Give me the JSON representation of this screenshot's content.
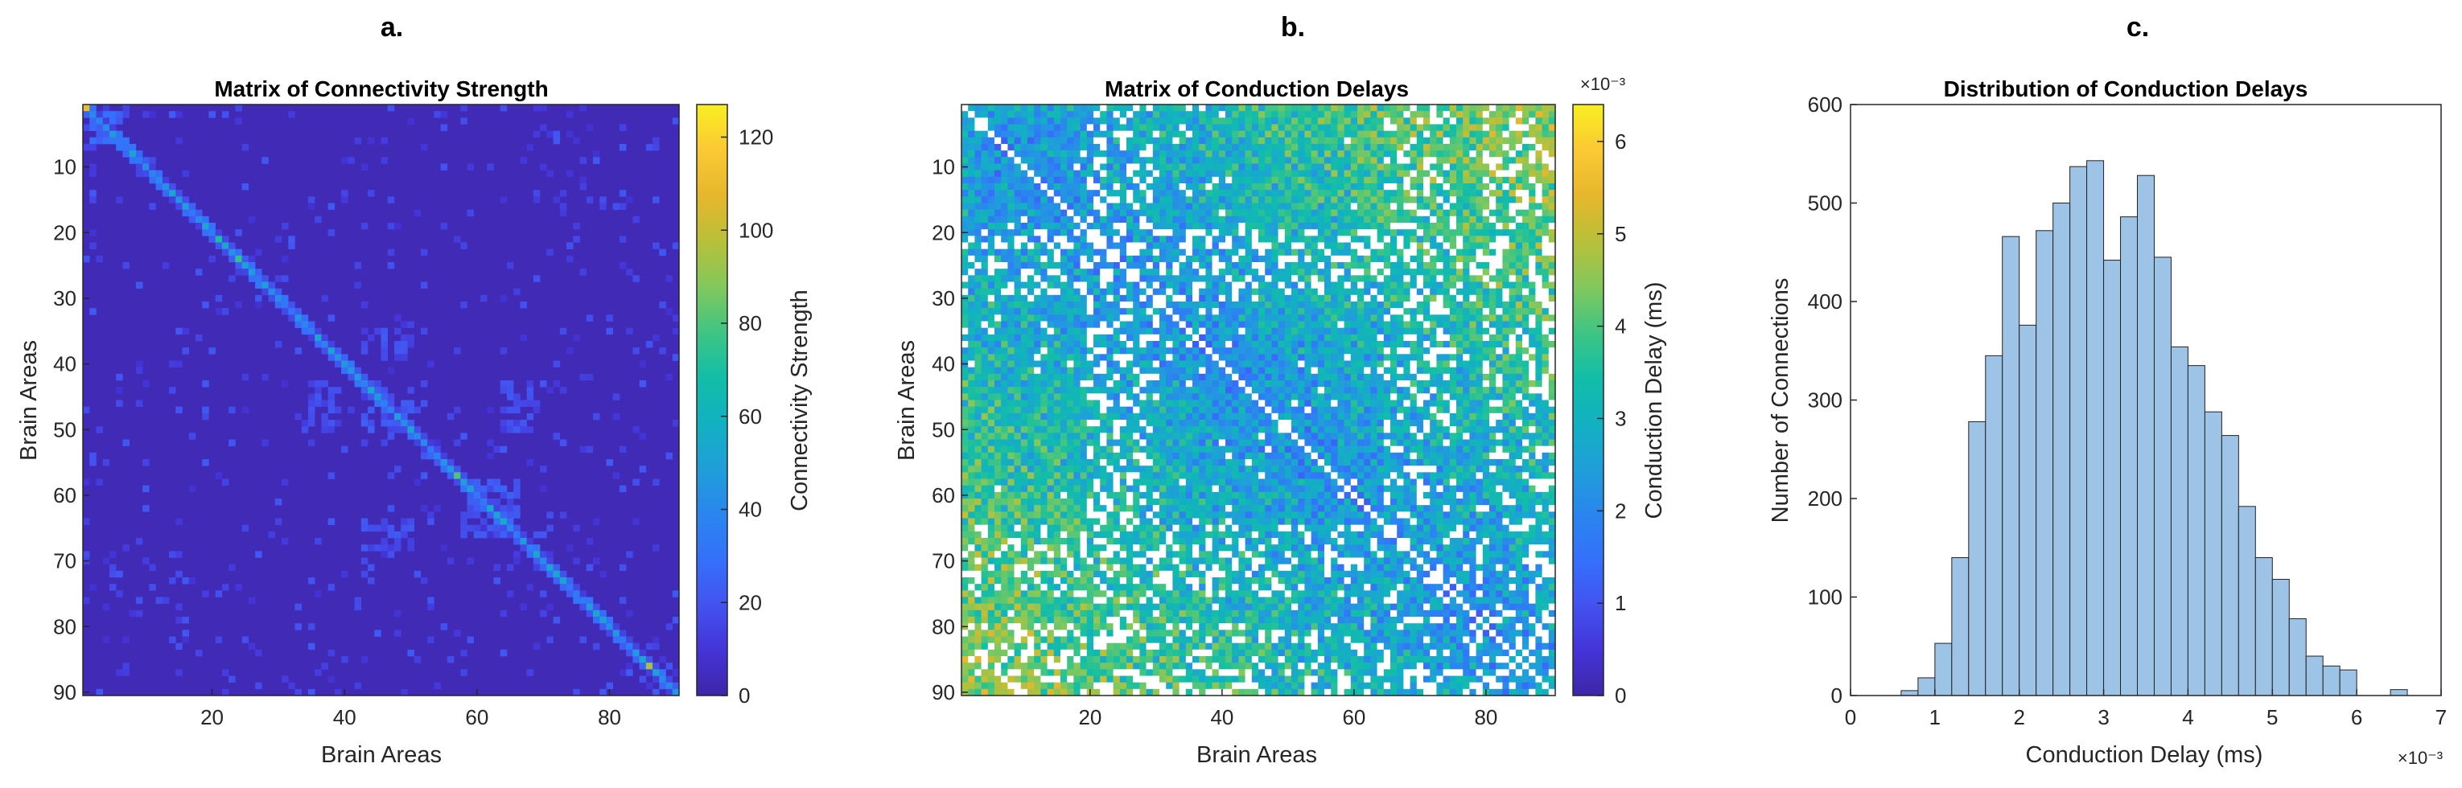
{
  "colors": {
    "colormap_parula": [
      "#3e26a8",
      "#4434d7",
      "#4353ef",
      "#3471fb",
      "#2a86ee",
      "#1f9fd9",
      "#12b1c1",
      "#12bea7",
      "#3fc583",
      "#82c85c",
      "#b8c039",
      "#e6b72d",
      "#fbc934",
      "#f8ef21"
    ],
    "hist_fill": "#9dc3e6",
    "hist_edge": "#222222",
    "axis": "#262626",
    "nan_cell": "#ffffff"
  },
  "chart_data": [
    {
      "type": "heatmap",
      "panel_label": "a.",
      "title": "Matrix of Connectivity Strength",
      "xlabel": "Brain Areas",
      "ylabel": "Brain Areas",
      "size": 90,
      "x_ticks": [
        20,
        40,
        60,
        80
      ],
      "y_ticks": [
        10,
        20,
        30,
        40,
        50,
        60,
        70,
        80,
        90
      ],
      "colorbar": {
        "label": "Connectivity Strength",
        "min": 0,
        "max": 127,
        "ticks": [
          0,
          20,
          40,
          60,
          80,
          100,
          120
        ]
      },
      "background_value": 3,
      "diagonal_peaks": [
        [
          1,
          110
        ],
        [
          21,
          70
        ],
        [
          24,
          75
        ],
        [
          57,
          80
        ],
        [
          86,
          95
        ]
      ],
      "blocks": [
        [
          43,
          50,
          43,
          50,
          15
        ],
        [
          58,
          66,
          58,
          66,
          15
        ],
        [
          35,
          39,
          43,
          50,
          12
        ],
        [
          43,
          50,
          64,
          68,
          12
        ],
        [
          2,
          6,
          2,
          6,
          20
        ]
      ]
    },
    {
      "type": "heatmap",
      "panel_label": "b.",
      "title": "Matrix of Conduction Delays",
      "xlabel": "Brain Areas",
      "ylabel": "Brain Areas",
      "size": 90,
      "x_ticks": [
        20,
        40,
        60,
        80
      ],
      "y_ticks": [
        10,
        20,
        30,
        40,
        50,
        60,
        70,
        80,
        90
      ],
      "colorbar": {
        "label": "Conduction Delay (ms)",
        "min": 0,
        "max": 6.4,
        "ticks": [
          0,
          1,
          2,
          3,
          4,
          5,
          6
        ],
        "exponent": "×10⁻³"
      },
      "regions": [
        [
          35,
          41,
          0.12
        ],
        [
          65,
          75,
          0.48
        ],
        [
          20,
          30,
          0.62
        ],
        [
          80,
          90,
          0.5
        ]
      ]
    },
    {
      "type": "bar",
      "panel_label": "c.",
      "title": "Distribution of Conduction Delays",
      "xlabel": "Conduction Delay (ms)",
      "ylabel": "Number of Connections",
      "x_exponent": "×10⁻³",
      "xlim": [
        0,
        7
      ],
      "ylim": [
        0,
        600
      ],
      "x_ticks": [
        0,
        1,
        2,
        3,
        4,
        5,
        6,
        7
      ],
      "y_ticks": [
        0,
        100,
        200,
        300,
        400,
        500,
        600
      ],
      "bin_start": 0.6,
      "bin_width": 0.2,
      "values": [
        5,
        18,
        53,
        140,
        278,
        345,
        466,
        376,
        472,
        500,
        537,
        543,
        442,
        486,
        528,
        445,
        354,
        335,
        288,
        264,
        192,
        140,
        118,
        78,
        40,
        30,
        26,
        0,
        0,
        6
      ]
    }
  ]
}
